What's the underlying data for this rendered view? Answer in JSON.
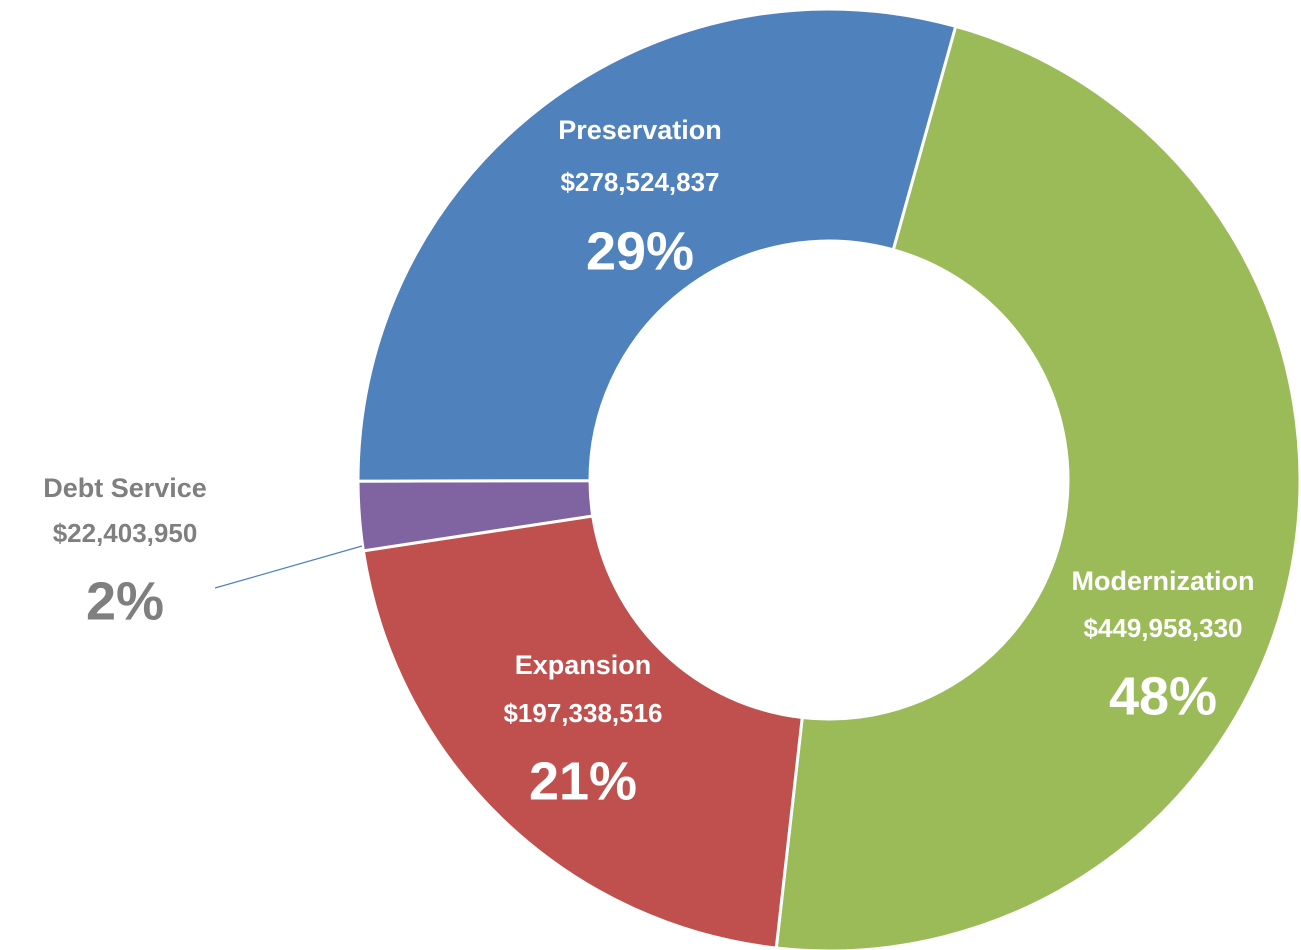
{
  "chart_data": {
    "type": "donut",
    "categories": [
      "Modernization",
      "Expansion",
      "Debt Service",
      "Preservation"
    ],
    "values": [
      449958330,
      197338516,
      22403950,
      278524837
    ],
    "value_labels": [
      "$449,958,330",
      "$197,338,516",
      "$22,403,950",
      "$278,524,837"
    ],
    "percents": [
      48,
      21,
      2,
      29
    ],
    "percent_labels": [
      "48%",
      "21%",
      "2%",
      "29%"
    ],
    "colors": [
      "#9BBB59",
      "#C0504D",
      "#8064A2",
      "#4F81BD"
    ]
  }
}
